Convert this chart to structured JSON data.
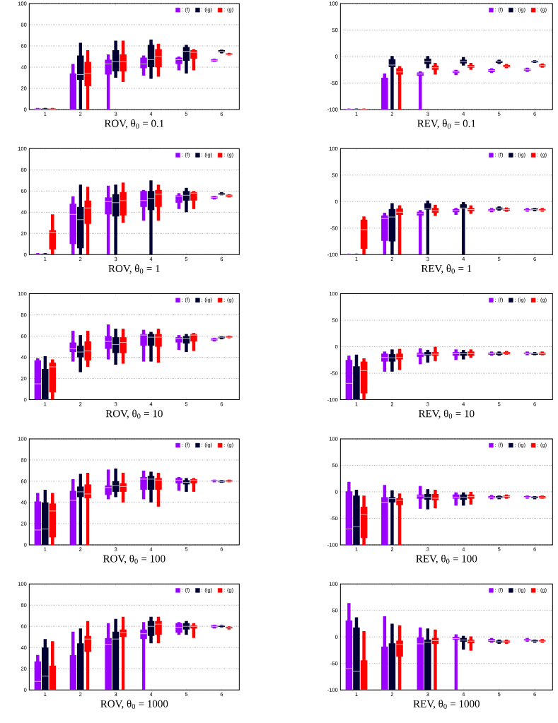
{
  "chart_data": [
    {
      "type": "box",
      "title": "ROV, θ$_{0}$ = 0.1",
      "categories": [
        "1",
        "2",
        "3",
        "4",
        "5",
        "6"
      ],
      "ylim": [
        0,
        100
      ],
      "yticks": [
        0,
        20,
        40,
        60,
        80,
        100
      ],
      "grid": "y",
      "legend": "top right",
      "series": [
        {
          "name": ": (f)",
          "color": "#9900ff",
          "boxes": [
            {
              "low": 0,
              "q1": 0,
              "median": 0.5,
              "q3": 1,
              "high": 1.5
            },
            {
              "low": 0,
              "q1": 0,
              "median": 0,
              "q3": 34,
              "high": 43
            },
            {
              "low": 0,
              "q1": 33,
              "median": 43,
              "q3": 47,
              "high": 52
            },
            {
              "low": 32,
              "q1": 39,
              "median": 43,
              "q3": 49,
              "high": 51
            },
            {
              "low": 37,
              "q1": 43,
              "median": 47,
              "q3": 49,
              "high": 50
            },
            {
              "low": 45,
              "q1": 45.5,
              "median": 46.5,
              "q3": 47.5,
              "high": 48
            }
          ]
        },
        {
          "name": ": (ig)",
          "color": "#000033",
          "boxes": [
            {
              "low": 0,
              "q1": 0,
              "median": 0.5,
              "q3": 1,
              "high": 1.5
            },
            {
              "low": 0,
              "q1": 28,
              "median": 33,
              "q3": 51,
              "high": 63
            },
            {
              "low": 30,
              "q1": 36,
              "median": 45,
              "q3": 56,
              "high": 65
            },
            {
              "low": 29,
              "q1": 40,
              "median": 47,
              "q3": 61,
              "high": 66
            },
            {
              "low": 34,
              "q1": 46,
              "median": 55,
              "q3": 59,
              "high": 61
            },
            {
              "low": 53,
              "q1": 54,
              "median": 55,
              "q3": 56,
              "high": 56.5
            }
          ]
        },
        {
          "name": ": (g)",
          "color": "#ff0000",
          "boxes": [
            {
              "low": 0,
              "q1": 0,
              "median": 0.5,
              "q3": 1,
              "high": 1.5
            },
            {
              "low": 0,
              "q1": 22,
              "median": 34,
              "q3": 45,
              "high": 56
            },
            {
              "low": 26,
              "q1": 36,
              "median": 45,
              "q3": 52,
              "high": 65
            },
            {
              "low": 31,
              "q1": 40,
              "median": 50,
              "q3": 57,
              "high": 62
            },
            {
              "low": 37,
              "q1": 48,
              "median": 54,
              "q3": 56,
              "high": 57
            },
            {
              "low": 51,
              "q1": 51.5,
              "median": 52,
              "q3": 53,
              "high": 53.5
            }
          ]
        }
      ]
    },
    {
      "type": "box",
      "title": "REV, θ$_{0}$ = 0.1",
      "categories": [
        "1",
        "2",
        "3",
        "4",
        "5",
        "6"
      ],
      "ylim": [
        -100,
        100
      ],
      "yticks": [
        -100,
        -50,
        0,
        50,
        100
      ],
      "grid": "y",
      "legend": "top right",
      "series": [
        {
          "name": ": (f)",
          "color": "#9900ff",
          "boxes": [
            {
              "low": -100,
              "q1": -100,
              "median": -99,
              "q3": -98.5,
              "high": -98
            },
            {
              "low": -100,
              "q1": -100,
              "median": -100,
              "q3": -40,
              "high": -32
            },
            {
              "low": -100,
              "q1": -36,
              "median": -33,
              "q3": -30,
              "high": -28
            },
            {
              "low": -35,
              "q1": -31,
              "median": -29,
              "q3": -27,
              "high": -25
            },
            {
              "low": -31,
              "q1": -29,
              "median": -26,
              "q3": -24,
              "high": -22
            },
            {
              "low": -29,
              "q1": -27,
              "median": -25,
              "q3": -23,
              "high": -21
            }
          ]
        },
        {
          "name": ": (ig)",
          "color": "#000033",
          "boxes": [
            {
              "low": -100,
              "q1": -100,
              "median": -99,
              "q3": -98.5,
              "high": -98
            },
            {
              "low": -100,
              "q1": -20,
              "median": -16,
              "q3": -5,
              "high": 1
            },
            {
              "low": -22,
              "q1": -14,
              "median": -9,
              "q3": -4,
              "high": 1
            },
            {
              "low": -17,
              "q1": -13,
              "median": -10,
              "q3": -6,
              "high": -1
            },
            {
              "low": -14,
              "q1": -12,
              "median": -10,
              "q3": -8,
              "high": -6
            },
            {
              "low": -12,
              "q1": -11,
              "median": -10,
              "q3": -8,
              "high": -7
            }
          ]
        },
        {
          "name": ": (g)",
          "color": "#ff0000",
          "boxes": [
            {
              "low": -100,
              "q1": -100,
              "median": -99,
              "q3": -98.5,
              "high": -98
            },
            {
              "low": -100,
              "q1": -34,
              "median": -29,
              "q3": -22,
              "high": -18
            },
            {
              "low": -34,
              "q1": -25,
              "median": -21,
              "q3": -17,
              "high": -12
            },
            {
              "low": -25,
              "q1": -21,
              "median": -19,
              "q3": -16,
              "high": -12
            },
            {
              "low": -22,
              "q1": -20,
              "median": -18,
              "q3": -16,
              "high": -14
            },
            {
              "low": -21,
              "q1": -19,
              "median": -17,
              "q3": -15,
              "high": -13
            }
          ]
        }
      ]
    },
    {
      "type": "box",
      "title": "ROV, θ$_{0}$ = 1",
      "categories": [
        "1",
        "2",
        "3",
        "4",
        "5",
        "6"
      ],
      "ylim": [
        0,
        100
      ],
      "yticks": [
        0,
        20,
        40,
        60,
        80,
        100
      ],
      "grid": "y",
      "legend": "top right",
      "series": [
        {
          "name": ": (f)",
          "color": "#9900ff",
          "boxes": [
            {
              "low": 0,
              "q1": 0,
              "median": 0.5,
              "q3": 1,
              "high": 1.5
            },
            {
              "low": 0,
              "q1": 10,
              "median": 38,
              "q3": 48,
              "high": 55
            },
            {
              "low": 0,
              "q1": 38,
              "median": 50,
              "q3": 54,
              "high": 65
            },
            {
              "low": 32,
              "q1": 45,
              "median": 51,
              "q3": 60,
              "high": 61
            },
            {
              "low": 43,
              "q1": 49,
              "median": 55,
              "q3": 56,
              "high": 58
            },
            {
              "low": 52,
              "q1": 53,
              "median": 54,
              "q3": 55,
              "high": 55.5
            }
          ]
        },
        {
          "name": ": (ig)",
          "color": "#000033",
          "boxes": [
            {
              "low": 0,
              "q1": 0,
              "median": 0.5,
              "q3": 1,
              "high": 1.5
            },
            {
              "low": 0,
              "q1": 6,
              "median": 33,
              "q3": 45,
              "high": 66
            },
            {
              "low": 0,
              "q1": 36,
              "median": 49,
              "q3": 57,
              "high": 66
            },
            {
              "low": 0,
              "q1": 42,
              "median": 53,
              "q3": 60,
              "high": 70
            },
            {
              "low": 40,
              "q1": 51,
              "median": 56,
              "q3": 60,
              "high": 63
            },
            {
              "low": 56,
              "q1": 56.5,
              "median": 57,
              "q3": 58,
              "high": 59
            }
          ]
        },
        {
          "name": ": (g)",
          "color": "#ff0000",
          "boxes": [
            {
              "low": 0,
              "q1": 5,
              "median": 21,
              "q3": 23,
              "high": 38
            },
            {
              "low": 0,
              "q1": 29,
              "median": 44,
              "q3": 51,
              "high": 64
            },
            {
              "low": 30,
              "q1": 37,
              "median": 51,
              "q3": 59,
              "high": 68
            },
            {
              "low": 32,
              "q1": 45,
              "median": 57,
              "q3": 61,
              "high": 66
            },
            {
              "low": 43,
              "q1": 51,
              "median": 58,
              "q3": 59,
              "high": 60
            },
            {
              "low": 54,
              "q1": 54.5,
              "median": 55.5,
              "q3": 56.5,
              "high": 57
            }
          ]
        }
      ]
    },
    {
      "type": "box",
      "title": "REV, θ$_{0}$ = 1",
      "categories": [
        "1",
        "2",
        "3",
        "4",
        "5",
        "6"
      ],
      "ylim": [
        -100,
        100
      ],
      "yticks": [
        -100,
        -50,
        0,
        50,
        100
      ],
      "grid": "y",
      "legend": "top right",
      "series": [
        {
          "name": ": (f)",
          "color": "#9900ff",
          "boxes": [
            {
              "low": -100,
              "q1": -100,
              "median": -99,
              "q3": -98.5,
              "high": -98
            },
            {
              "low": -100,
              "q1": -74,
              "median": -32,
              "q3": -26,
              "high": -21
            },
            {
              "low": -100,
              "q1": -26,
              "median": -22,
              "q3": -19,
              "high": -16
            },
            {
              "low": -25,
              "q1": -20,
              "median": -17,
              "q3": -14,
              "high": -12
            },
            {
              "low": -20,
              "q1": -18,
              "median": -16,
              "q3": -14,
              "high": -12
            },
            {
              "low": -19,
              "q1": -17,
              "median": -16,
              "q3": -14,
              "high": -12
            }
          ]
        },
        {
          "name": ": (ig)",
          "color": "#000033",
          "boxes": [
            {
              "low": -100,
              "q1": -100,
              "median": -99,
              "q3": -98.5,
              "high": -98
            },
            {
              "low": -100,
              "q1": -75,
              "median": -29,
              "q3": -14,
              "high": -3
            },
            {
              "low": -100,
              "q1": -15,
              "median": -13,
              "q3": -3,
              "high": 2
            },
            {
              "low": -100,
              "q1": -13,
              "median": -12,
              "q3": -5,
              "high": -1
            },
            {
              "low": -17,
              "q1": -15,
              "median": -13,
              "q3": -11,
              "high": -9
            },
            {
              "low": -18,
              "q1": -16,
              "median": -15,
              "q3": -13,
              "high": -12
            }
          ]
        },
        {
          "name": ": (g)",
          "color": "#ff0000",
          "boxes": [
            {
              "low": -100,
              "q1": -89,
              "median": -53,
              "q3": -34,
              "high": -28
            },
            {
              "low": -100,
              "q1": -25,
              "median": -20,
              "q3": -13,
              "high": -7
            },
            {
              "low": -27,
              "q1": -21,
              "median": -17,
              "q3": -12,
              "high": -6
            },
            {
              "low": -23,
              "q1": -18,
              "median": -15,
              "q3": -12,
              "high": -7
            },
            {
              "low": -19,
              "q1": -17,
              "median": -15,
              "q3": -13,
              "high": -11
            },
            {
              "low": -19,
              "q1": -17,
              "median": -16,
              "q3": -14,
              "high": -12
            }
          ]
        }
      ]
    },
    {
      "type": "box",
      "title": "ROV, θ$_{0}$ = 10",
      "categories": [
        "1",
        "2",
        "3",
        "4",
        "5",
        "6"
      ],
      "ylim": [
        0,
        100
      ],
      "yticks": [
        0,
        20,
        40,
        60,
        80,
        100
      ],
      "grid": "y",
      "legend": "top right",
      "series": [
        {
          "name": ": (f)",
          "color": "#9900ff",
          "boxes": [
            {
              "low": 0,
              "q1": 0,
              "median": 15,
              "q3": 37,
              "high": 39
            },
            {
              "low": 36,
              "q1": 45,
              "median": 48,
              "q3": 54,
              "high": 65
            },
            {
              "low": 38,
              "q1": 48,
              "median": 55,
              "q3": 60,
              "high": 71
            },
            {
              "low": 36,
              "q1": 51,
              "median": 61,
              "q3": 62,
              "high": 66
            },
            {
              "low": 47,
              "q1": 54,
              "median": 58,
              "q3": 59,
              "high": 61
            },
            {
              "low": 55,
              "q1": 56,
              "median": 57,
              "q3": 58,
              "high": 58.5
            }
          ]
        },
        {
          "name": ": (ig)",
          "color": "#000033",
          "boxes": [
            {
              "low": 0,
              "q1": 0,
              "median": 0,
              "q3": 29,
              "high": 41
            },
            {
              "low": 26,
              "q1": 40,
              "median": 45,
              "q3": 51,
              "high": 61
            },
            {
              "low": 33,
              "q1": 44,
              "median": 52,
              "q3": 59,
              "high": 67
            },
            {
              "low": 36,
              "q1": 51,
              "median": 59,
              "q3": 62,
              "high": 64
            },
            {
              "low": 45,
              "q1": 53,
              "median": 58,
              "q3": 60,
              "high": 62
            },
            {
              "low": 57,
              "q1": 58,
              "median": 59,
              "q3": 59.5,
              "high": 60
            }
          ]
        },
        {
          "name": ": (g)",
          "color": "#ff0000",
          "boxes": [
            {
              "low": 0,
              "q1": 7,
              "median": 31,
              "q3": 35,
              "high": 38
            },
            {
              "low": 31,
              "q1": 37,
              "median": 46,
              "q3": 55,
              "high": 65
            },
            {
              "low": 34,
              "q1": 44,
              "median": 54,
              "q3": 59,
              "high": 67
            },
            {
              "low": 35,
              "q1": 50,
              "median": 59,
              "q3": 62,
              "high": 67
            },
            {
              "low": 46,
              "q1": 55,
              "median": 61,
              "q3": 62,
              "high": 63
            },
            {
              "low": 58,
              "q1": 58.5,
              "median": 59,
              "q3": 60,
              "high": 60.5
            }
          ]
        }
      ]
    },
    {
      "type": "box",
      "title": "REV, θ$_{0}$ = 10",
      "categories": [
        "1",
        "2",
        "3",
        "4",
        "5",
        "6"
      ],
      "ylim": [
        -100,
        100
      ],
      "yticks": [
        -100,
        -50,
        0,
        50,
        100
      ],
      "grid": "y",
      "legend": "top right",
      "series": [
        {
          "name": ": (f)",
          "color": "#9900ff",
          "boxes": [
            {
              "low": -100,
              "q1": -100,
              "median": -69,
              "q3": -25,
              "high": -17
            },
            {
              "low": -47,
              "q1": -28,
              "median": -20,
              "q3": -13,
              "high": -9
            },
            {
              "low": -33,
              "q1": -19,
              "median": -14,
              "q3": -11,
              "high": -3
            },
            {
              "low": -25,
              "q1": -17,
              "median": -13,
              "q3": -10,
              "high": -5
            },
            {
              "low": -17,
              "q1": -15,
              "median": -13,
              "q3": -11,
              "high": -9
            },
            {
              "low": -16,
              "q1": -14,
              "median": -13,
              "q3": -11,
              "high": -9
            }
          ]
        },
        {
          "name": ": (ig)",
          "color": "#000033",
          "boxes": [
            {
              "low": -100,
              "q1": -100,
              "median": -100,
              "q3": -37,
              "high": -15
            },
            {
              "low": -47,
              "q1": -28,
              "median": -21,
              "q3": -14,
              "high": -5
            },
            {
              "low": -30,
              "q1": -17,
              "median": -15,
              "q3": -10,
              "high": -6
            },
            {
              "low": -24,
              "q1": -17,
              "median": -13,
              "q3": -10,
              "high": -6
            },
            {
              "low": -17,
              "q1": -15,
              "median": -13,
              "q3": -11,
              "high": -9
            },
            {
              "low": -16,
              "q1": -15,
              "median": -13,
              "q3": -12,
              "high": -10
            }
          ]
        },
        {
          "name": ": (g)",
          "color": "#ff0000",
          "boxes": [
            {
              "low": -100,
              "q1": -88,
              "median": -45,
              "q3": -28,
              "high": -22
            },
            {
              "low": -44,
              "q1": -24,
              "median": -20,
              "q3": -13,
              "high": -4
            },
            {
              "low": -27,
              "q1": -17,
              "median": -14,
              "q3": -10,
              "high": 0
            },
            {
              "low": -21,
              "q1": -17,
              "median": -13,
              "q3": -9,
              "high": -5
            },
            {
              "low": -15,
              "q1": -14,
              "median": -12,
              "q3": -10,
              "high": -8
            },
            {
              "low": -16,
              "q1": -15,
              "median": -13,
              "q3": -11,
              "high": -9
            }
          ]
        }
      ]
    },
    {
      "type": "box",
      "title": "ROV, θ$_{0}$ = 100",
      "categories": [
        "1",
        "2",
        "3",
        "4",
        "5",
        "6"
      ],
      "ylim": [
        0,
        100
      ],
      "yticks": [
        0,
        20,
        40,
        60,
        80,
        100
      ],
      "grid": "y",
      "legend": "top right",
      "series": [
        {
          "name": ": (f)",
          "color": "#9900ff",
          "boxes": [
            {
              "low": 0,
              "q1": 0,
              "median": 14,
              "q3": 41,
              "high": 49
            },
            {
              "low": 0,
              "q1": 0,
              "median": 42,
              "q3": 51,
              "high": 62
            },
            {
              "low": 43,
              "q1": 47,
              "median": 54,
              "q3": 56,
              "high": 71
            },
            {
              "low": 43,
              "q1": 52,
              "median": 62,
              "q3": 64,
              "high": 70
            },
            {
              "low": 51,
              "q1": 58,
              "median": 61,
              "q3": 63,
              "high": 64
            },
            {
              "low": 59,
              "q1": 60,
              "median": 60.5,
              "q3": 61,
              "high": 61.5
            }
          ]
        },
        {
          "name": ": (ig)",
          "color": "#000033",
          "boxes": [
            {
              "low": 0,
              "q1": 0,
              "median": 15,
              "q3": 40,
              "high": 52
            },
            {
              "low": 0,
              "q1": 45,
              "median": 50,
              "q3": 55,
              "high": 67
            },
            {
              "low": 45,
              "q1": 50,
              "median": 56,
              "q3": 60,
              "high": 72
            },
            {
              "low": 40,
              "q1": 52,
              "median": 62,
              "q3": 65,
              "high": 69
            },
            {
              "low": 50,
              "q1": 57,
              "median": 59,
              "q3": 61,
              "high": 63
            },
            {
              "low": 58.5,
              "q1": 59,
              "median": 59.5,
              "q3": 60.5,
              "high": 61
            }
          ]
        },
        {
          "name": ": (g)",
          "color": "#ff0000",
          "boxes": [
            {
              "low": 0,
              "q1": 7,
              "median": 32,
              "q3": 39,
              "high": 49
            },
            {
              "low": 0,
              "q1": 44,
              "median": 48,
              "q3": 57,
              "high": 68
            },
            {
              "low": 40,
              "q1": 50,
              "median": 55,
              "q3": 58,
              "high": 68
            },
            {
              "low": 36,
              "q1": 52,
              "median": 61,
              "q3": 63,
              "high": 68
            },
            {
              "low": 50,
              "q1": 58,
              "median": 61,
              "q3": 62,
              "high": 63
            },
            {
              "low": 59,
              "q1": 59.5,
              "median": 60,
              "q3": 61,
              "high": 61.5
            }
          ]
        }
      ]
    },
    {
      "type": "box",
      "title": "REV, θ$_{0}$ = 100",
      "categories": [
        "1",
        "2",
        "3",
        "4",
        "5",
        "6"
      ],
      "ylim": [
        -100,
        100
      ],
      "yticks": [
        -100,
        -50,
        0,
        50,
        100
      ],
      "grid": "y",
      "legend": "top right",
      "series": [
        {
          "name": ": (f)",
          "color": "#9900ff",
          "boxes": [
            {
              "low": -100,
              "q1": -100,
              "median": -70,
              "q3": 1,
              "high": 19
            },
            {
              "low": -100,
              "q1": -100,
              "median": -20,
              "q3": -10,
              "high": 13
            },
            {
              "low": -32,
              "q1": -13,
              "median": -8,
              "q3": -5,
              "high": 11
            },
            {
              "low": -26,
              "q1": -13,
              "median": -10,
              "q3": -5,
              "high": -1
            },
            {
              "low": -14,
              "q1": -12,
              "median": -10,
              "q3": -8,
              "high": -6
            },
            {
              "low": -13,
              "q1": -11,
              "median": -10,
              "q3": -8,
              "high": -7
            }
          ]
        },
        {
          "name": ": (ig)",
          "color": "#000033",
          "boxes": [
            {
              "low": -100,
              "q1": -100,
              "median": -66,
              "q3": -7,
              "high": 4
            },
            {
              "low": -100,
              "q1": -20,
              "median": -13,
              "q3": -10,
              "high": 3
            },
            {
              "low": -33,
              "q1": -15,
              "median": -10,
              "q3": -4,
              "high": 5
            },
            {
              "low": -26,
              "q1": -15,
              "median": -10,
              "q3": -5,
              "high": -1
            },
            {
              "low": -14,
              "q1": -12,
              "median": -10,
              "q3": -8,
              "high": -7
            },
            {
              "low": -14,
              "q1": -12,
              "median": -11,
              "q3": -9,
              "high": -8
            }
          ]
        },
        {
          "name": ": (g)",
          "color": "#ff0000",
          "boxes": [
            {
              "low": -100,
              "q1": -87,
              "median": -43,
              "q3": -28,
              "high": -7
            },
            {
              "low": -100,
              "q1": -25,
              "median": -16,
              "q3": -12,
              "high": -3
            },
            {
              "low": -31,
              "q1": -16,
              "median": -12,
              "q3": -4,
              "high": 4
            },
            {
              "low": -24,
              "q1": -13,
              "median": -9,
              "q3": -5,
              "high": 0
            },
            {
              "low": -13,
              "q1": -11,
              "median": -9,
              "q3": -7,
              "high": -5
            },
            {
              "low": -13,
              "q1": -12,
              "median": -10,
              "q3": -8,
              "high": -7
            }
          ]
        }
      ]
    },
    {
      "type": "box",
      "title": "ROV, θ$_{0}$ = 1000",
      "categories": [
        "1",
        "2",
        "3",
        "4",
        "5",
        "6"
      ],
      "ylim": [
        0,
        100
      ],
      "yticks": [
        0,
        20,
        40,
        60,
        80,
        100
      ],
      "grid": "y",
      "legend": "top right",
      "series": [
        {
          "name": ": (f)",
          "color": "#9900ff",
          "boxes": [
            {
              "low": 0,
              "q1": 0,
              "median": 8,
              "q3": 27,
              "high": 33
            },
            {
              "low": 0,
              "q1": 0,
              "median": 0,
              "q3": 33,
              "high": 55
            },
            {
              "low": 0,
              "q1": 0,
              "median": 43,
              "q3": 49,
              "high": 63
            },
            {
              "low": 0,
              "q1": 48,
              "median": 53,
              "q3": 57,
              "high": 64
            },
            {
              "low": 52,
              "q1": 54,
              "median": 59,
              "q3": 63,
              "high": 64
            },
            {
              "low": 58,
              "q1": 59,
              "median": 60,
              "q3": 61,
              "high": 61.5
            }
          ]
        },
        {
          "name": ": (ig)",
          "color": "#000033",
          "boxes": [
            {
              "low": 0,
              "q1": 0,
              "median": 13,
              "q3": 40,
              "high": 48
            },
            {
              "low": 0,
              "q1": 0,
              "median": 0,
              "q3": 44,
              "high": 58
            },
            {
              "low": 0,
              "q1": 0,
              "median": 48,
              "q3": 55,
              "high": 67
            },
            {
              "low": 44,
              "q1": 51,
              "median": 60,
              "q3": 65,
              "high": 69
            },
            {
              "low": 52,
              "q1": 57,
              "median": 60,
              "q3": 63,
              "high": 65
            },
            {
              "low": 59,
              "q1": 59.5,
              "median": 60.5,
              "q3": 61,
              "high": 61.5
            }
          ]
        },
        {
          "name": ": (g)",
          "color": "#ff0000",
          "boxes": [
            {
              "low": 0,
              "q1": 0,
              "median": 0,
              "q3": 23,
              "high": 46
            },
            {
              "low": 0,
              "q1": 36,
              "median": 48,
              "q3": 51,
              "high": 65
            },
            {
              "low": 0,
              "q1": 50,
              "median": 54,
              "q3": 57,
              "high": 69
            },
            {
              "low": 44,
              "q1": 52,
              "median": 62,
              "q3": 65,
              "high": 69
            },
            {
              "low": 49,
              "q1": 58,
              "median": 60,
              "q3": 61,
              "high": 63
            },
            {
              "low": 57,
              "q1": 58,
              "median": 58.5,
              "q3": 59.5,
              "high": 60
            }
          ]
        }
      ]
    },
    {
      "type": "box",
      "title": "REV, θ$_{0}$ = 1000",
      "categories": [
        "1",
        "2",
        "3",
        "4",
        "5",
        "6"
      ],
      "ylim": [
        -100,
        100
      ],
      "yticks": [
        -100,
        -50,
        0,
        50,
        100
      ],
      "grid": "y",
      "legend": "top right",
      "series": [
        {
          "name": ": (f)",
          "color": "#9900ff",
          "boxes": [
            {
              "low": -100,
              "q1": -100,
              "median": -60,
              "q3": 31,
              "high": 64
            },
            {
              "low": -100,
              "q1": -100,
              "median": -100,
              "q3": -18,
              "high": 39
            },
            {
              "low": -100,
              "q1": -100,
              "median": -13,
              "q3": -1,
              "high": 18
            },
            {
              "low": -100,
              "q1": -5,
              "median": -3,
              "q3": 0,
              "high": 5
            },
            {
              "low": -11,
              "q1": -9,
              "median": -7,
              "q3": -4,
              "high": -2
            },
            {
              "low": -9,
              "q1": -7,
              "median": -6,
              "q3": -4,
              "high": -2
            }
          ]
        },
        {
          "name": ": (ig)",
          "color": "#000033",
          "boxes": [
            {
              "low": -100,
              "q1": -100,
              "median": -65,
              "q3": 18,
              "high": 37
            },
            {
              "low": -100,
              "q1": -100,
              "median": -100,
              "q3": -12,
              "high": 25
            },
            {
              "low": -100,
              "q1": -100,
              "median": -10,
              "q3": -5,
              "high": 16
            },
            {
              "low": -24,
              "q1": -9,
              "median": -6,
              "q3": -2,
              "high": 2
            },
            {
              "low": -13,
              "q1": -11,
              "median": -9,
              "q3": -7,
              "high": -5
            },
            {
              "low": -11,
              "q1": -9,
              "median": -8,
              "q3": -6,
              "high": -5
            }
          ]
        },
        {
          "name": ": (g)",
          "color": "#ff0000",
          "boxes": [
            {
              "low": -100,
              "q1": -100,
              "median": -100,
              "q3": -44,
              "high": 11
            },
            {
              "low": -100,
              "q1": -37,
              "median": -14,
              "q3": -7,
              "high": 22
            },
            {
              "low": -100,
              "q1": -13,
              "median": -7,
              "q3": -2,
              "high": 14
            },
            {
              "low": -26,
              "q1": -12,
              "median": -8,
              "q3": -5,
              "high": 1
            },
            {
              "low": -13,
              "q1": -11,
              "median": -9,
              "q3": -7,
              "high": -5
            },
            {
              "low": -11,
              "q1": -9,
              "median": -8,
              "q3": -6,
              "high": -4
            }
          ]
        }
      ]
    }
  ]
}
